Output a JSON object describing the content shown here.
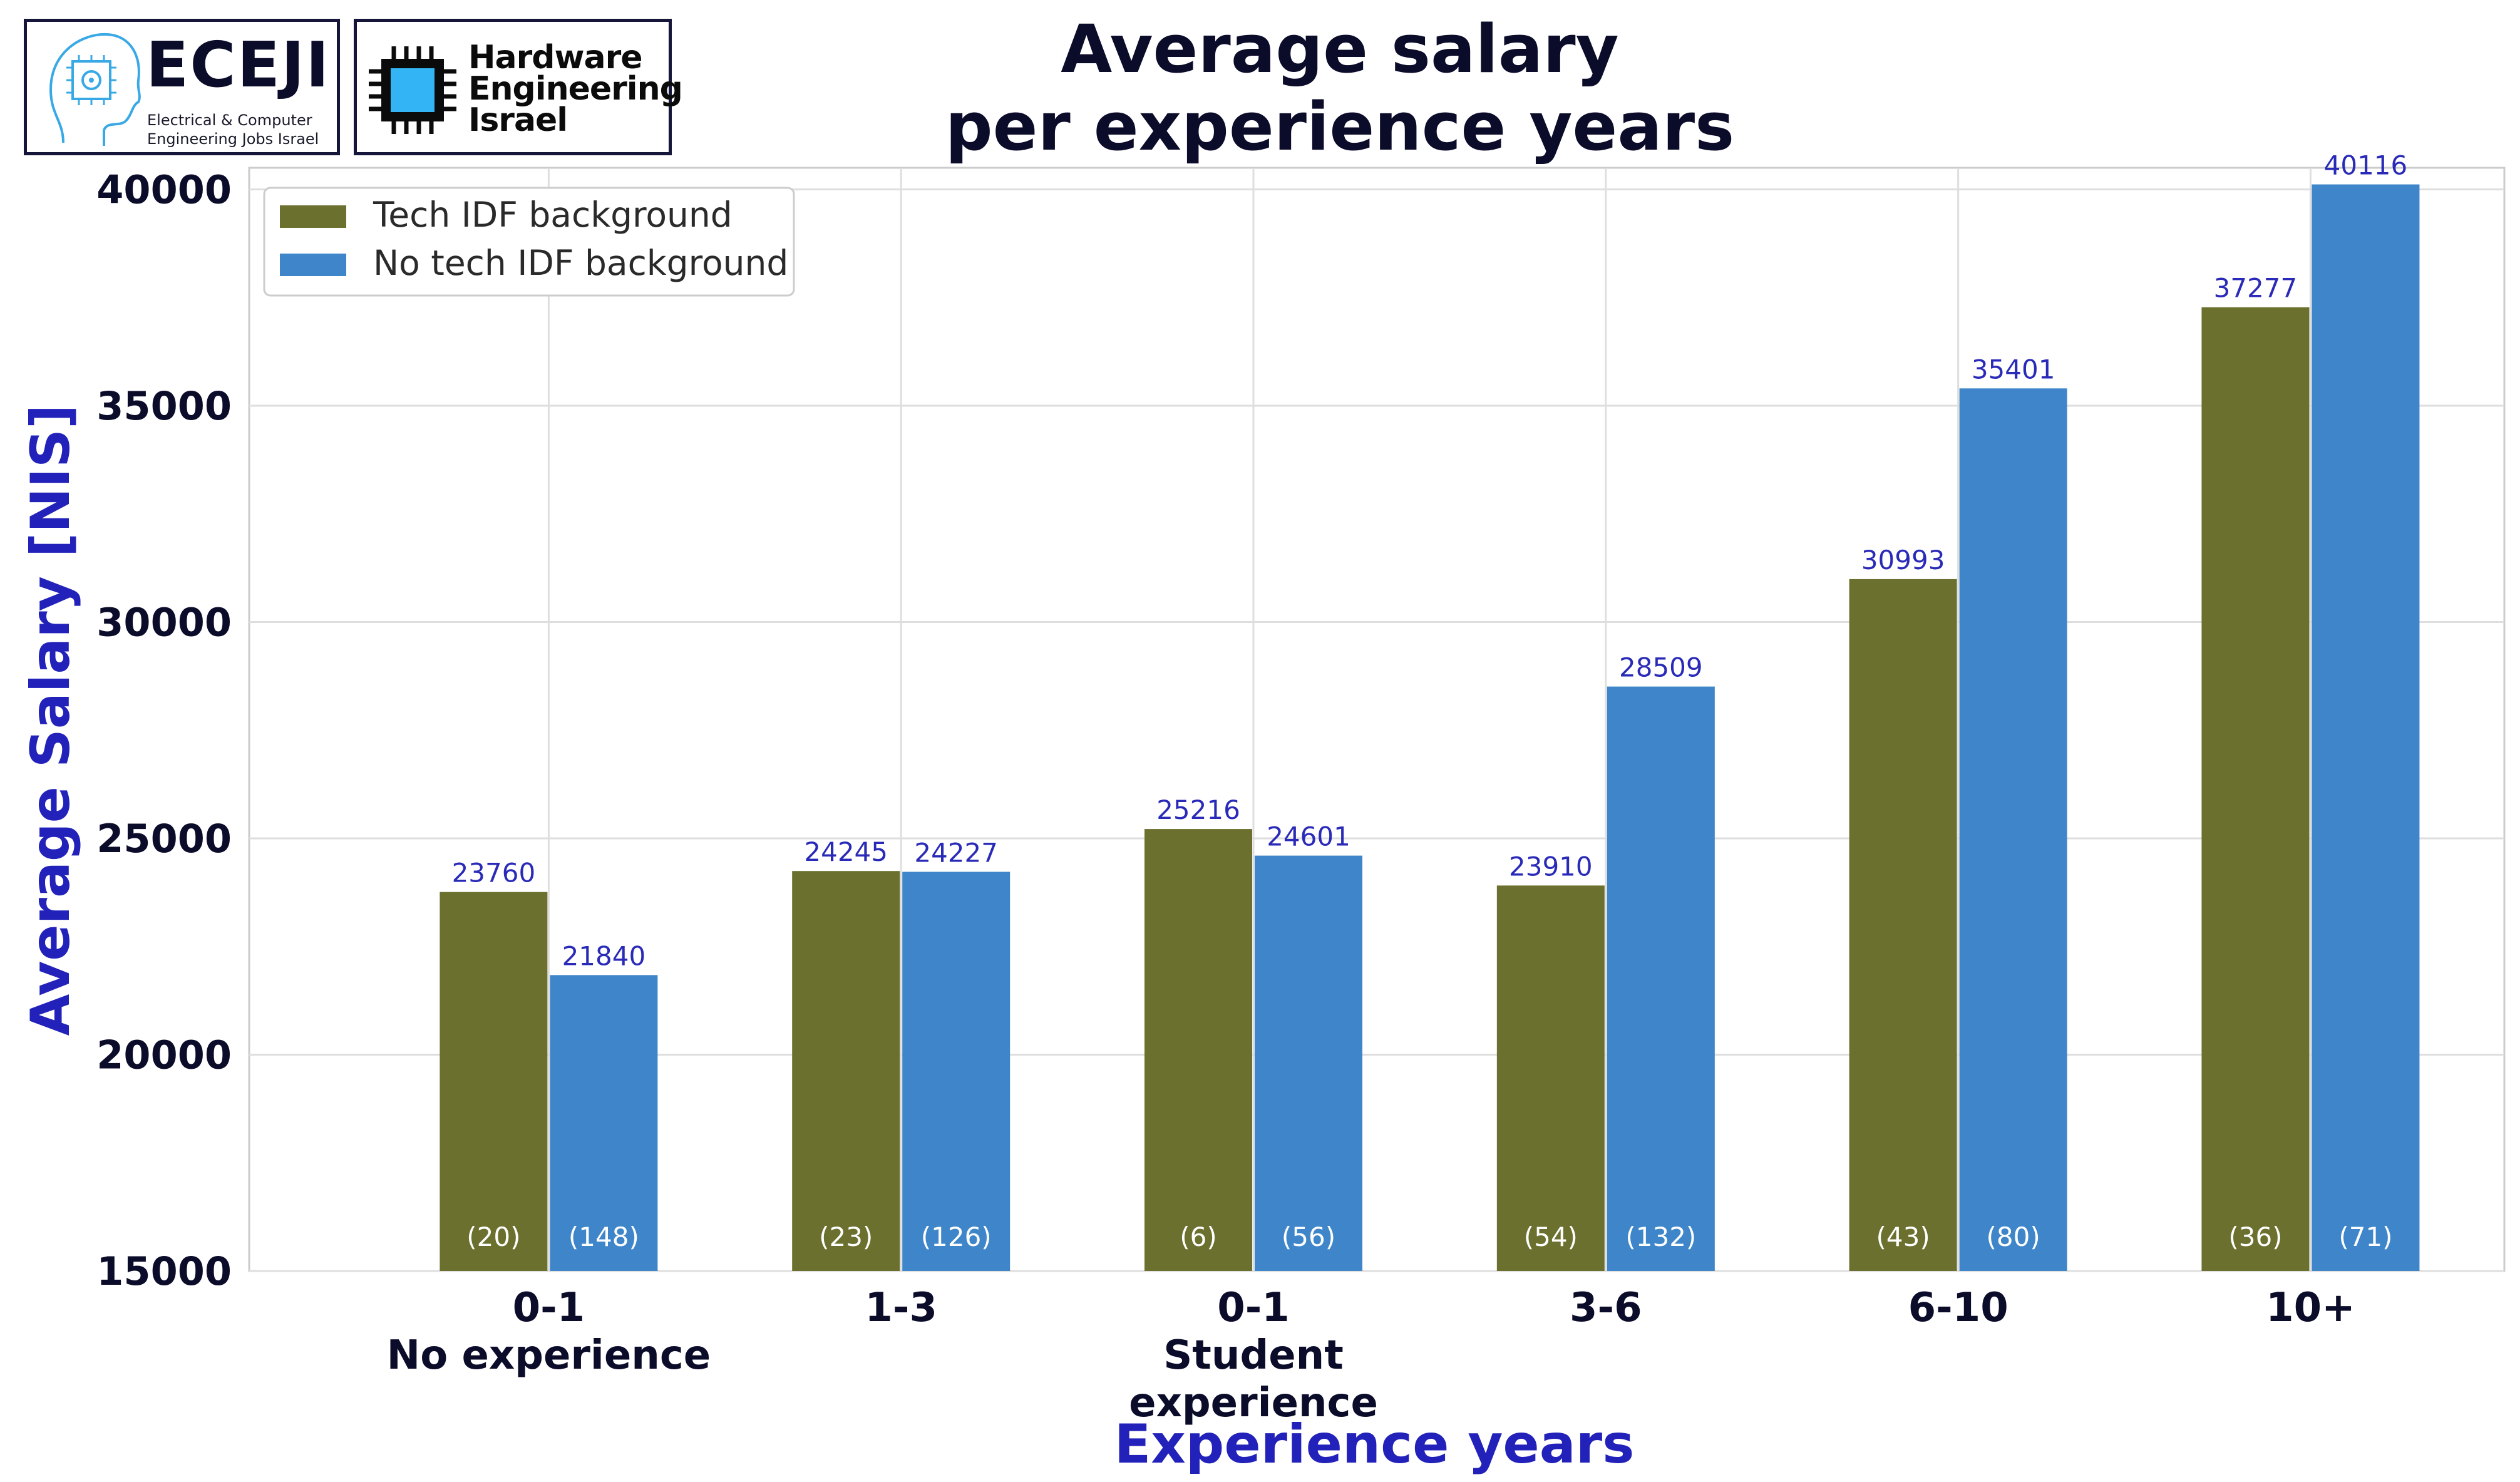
{
  "logos": {
    "eceji": {
      "title": "ECEJI",
      "subtitle_line1": "Electrical  &  Computer",
      "subtitle_line2": "Engineering Jobs Israel"
    },
    "hardware": {
      "line1": "Hardware",
      "line2": "Engineering",
      "line3": "Israel"
    }
  },
  "chart_data": {
    "type": "bar",
    "title_lines": [
      "Average salary",
      "per experience years"
    ],
    "xlabel": "Experience years",
    "ylabel": "Average Salary [NIS]",
    "ylim": [
      15000,
      40500
    ],
    "yticks": [
      15000,
      20000,
      25000,
      30000,
      35000,
      40000
    ],
    "grid": true,
    "legend_position": "top-left",
    "categories": [
      [
        "0-1",
        "No experience"
      ],
      [
        "1-3"
      ],
      [
        "0-1",
        "Student",
        "experience"
      ],
      [
        "3-6"
      ],
      [
        "6-10"
      ],
      [
        "10+"
      ]
    ],
    "series": [
      {
        "name": "Tech IDF background",
        "color": "#6b702e",
        "values": [
          23760,
          24245,
          25216,
          23910,
          30993,
          37277
        ],
        "counts": [
          "(20)",
          "(23)",
          "(6)",
          "(54)",
          "(43)",
          "(36)"
        ]
      },
      {
        "name": "No tech IDF background",
        "color": "#3e86c9",
        "values": [
          21840,
          24227,
          24601,
          28509,
          35401,
          40116
        ],
        "counts": [
          "(148)",
          "(126)",
          "(56)",
          "(132)",
          "(80)",
          "(71)"
        ]
      }
    ],
    "value_label_color": "#2a2ab8",
    "axis_label_color": "#2222bb",
    "title_color": "#0b0b2a"
  }
}
